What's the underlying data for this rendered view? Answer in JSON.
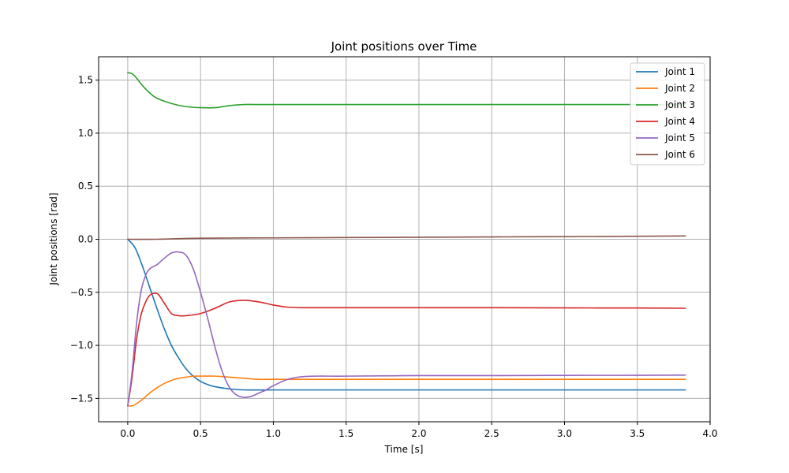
{
  "chart_data": {
    "type": "line",
    "title": "Joint positions over Time",
    "xlabel": "Time [s]",
    "ylabel": "Joint positions [rad]",
    "xlim": [
      -0.2,
      4.0
    ],
    "ylim": [
      -1.72,
      1.72
    ],
    "xticks": [
      0.0,
      0.5,
      1.0,
      1.5,
      2.0,
      2.5,
      3.0,
      3.5,
      4.0
    ],
    "xtick_labels": [
      "0.0",
      "0.5",
      "1.0",
      "1.5",
      "2.0",
      "2.5",
      "3.0",
      "3.5",
      "4.0"
    ],
    "yticks": [
      -1.5,
      -1.0,
      -0.5,
      0.0,
      0.5,
      1.0,
      1.5
    ],
    "ytick_labels": [
      "−1.5",
      "−1.0",
      "−0.5",
      "0.0",
      "0.5",
      "1.0",
      "1.5"
    ],
    "grid": true,
    "legend_position": "top-right",
    "series": [
      {
        "name": "Joint 1",
        "color": "#1f77b4",
        "x": [
          0,
          0.05,
          0.1,
          0.15,
          0.2,
          0.25,
          0.3,
          0.35,
          0.4,
          0.45,
          0.5,
          0.55,
          0.6,
          0.7,
          0.8,
          1.0,
          1.2,
          1.5,
          2.0,
          2.5,
          3.0,
          3.5,
          3.83
        ],
        "y": [
          0.0,
          -0.08,
          -0.25,
          -0.45,
          -0.65,
          -0.84,
          -1.0,
          -1.12,
          -1.22,
          -1.29,
          -1.34,
          -1.37,
          -1.39,
          -1.41,
          -1.42,
          -1.42,
          -1.42,
          -1.42,
          -1.42,
          -1.42,
          -1.42,
          -1.42,
          -1.42
        ]
      },
      {
        "name": "Joint 2",
        "color": "#ff7f0e",
        "x": [
          0,
          0.03,
          0.06,
          0.1,
          0.15,
          0.2,
          0.25,
          0.3,
          0.35,
          0.4,
          0.45,
          0.5,
          0.6,
          0.7,
          0.8,
          0.9,
          1.0,
          1.2,
          1.5,
          2.0,
          2.5,
          3.0,
          3.5,
          3.83
        ],
        "y": [
          -1.57,
          -1.57,
          -1.55,
          -1.51,
          -1.45,
          -1.4,
          -1.36,
          -1.33,
          -1.31,
          -1.3,
          -1.29,
          -1.29,
          -1.29,
          -1.3,
          -1.31,
          -1.32,
          -1.32,
          -1.32,
          -1.32,
          -1.32,
          -1.32,
          -1.32,
          -1.32,
          -1.32
        ]
      },
      {
        "name": "Joint 3",
        "color": "#2ca02c",
        "x": [
          0,
          0.03,
          0.06,
          0.1,
          0.15,
          0.2,
          0.3,
          0.4,
          0.5,
          0.6,
          0.7,
          0.8,
          0.9,
          1.0,
          1.2,
          1.5,
          2.0,
          2.5,
          3.0,
          3.5,
          3.83
        ],
        "y": [
          1.57,
          1.56,
          1.52,
          1.45,
          1.38,
          1.33,
          1.28,
          1.25,
          1.24,
          1.24,
          1.26,
          1.27,
          1.27,
          1.27,
          1.27,
          1.27,
          1.27,
          1.27,
          1.27,
          1.27,
          1.27
        ]
      },
      {
        "name": "Joint 4",
        "color": "#d62728",
        "x": [
          0,
          0.03,
          0.06,
          0.09,
          0.12,
          0.15,
          0.18,
          0.21,
          0.25,
          0.3,
          0.35,
          0.4,
          0.5,
          0.6,
          0.7,
          0.8,
          0.9,
          1.0,
          1.1,
          1.2,
          1.5,
          2.0,
          2.5,
          3.0,
          3.5,
          3.83
        ],
        "y": [
          -1.57,
          -1.3,
          -0.95,
          -0.72,
          -0.6,
          -0.53,
          -0.51,
          -0.52,
          -0.6,
          -0.7,
          -0.72,
          -0.72,
          -0.7,
          -0.65,
          -0.59,
          -0.575,
          -0.59,
          -0.62,
          -0.64,
          -0.645,
          -0.645,
          -0.645,
          -0.645,
          -0.647,
          -0.648,
          -0.65
        ]
      },
      {
        "name": "Joint 5",
        "color": "#9467bd",
        "x": [
          0,
          0.03,
          0.06,
          0.09,
          0.12,
          0.15,
          0.2,
          0.25,
          0.3,
          0.35,
          0.4,
          0.45,
          0.5,
          0.55,
          0.6,
          0.65,
          0.7,
          0.75,
          0.8,
          0.85,
          0.9,
          0.95,
          1.0,
          1.1,
          1.2,
          1.3,
          1.5,
          2.0,
          2.5,
          3.0,
          3.5,
          3.83
        ],
        "y": [
          -1.57,
          -1.25,
          -0.8,
          -0.5,
          -0.35,
          -0.28,
          -0.24,
          -0.18,
          -0.13,
          -0.12,
          -0.15,
          -0.28,
          -0.5,
          -0.75,
          -1.02,
          -1.25,
          -1.4,
          -1.47,
          -1.49,
          -1.48,
          -1.45,
          -1.42,
          -1.38,
          -1.32,
          -1.295,
          -1.29,
          -1.29,
          -1.285,
          -1.285,
          -1.283,
          -1.282,
          -1.28
        ]
      },
      {
        "name": "Joint 6",
        "color": "#8c564b",
        "x": [
          0,
          0.2,
          0.5,
          1.0,
          1.5,
          2.0,
          2.5,
          3.0,
          3.5,
          3.83
        ],
        "y": [
          0.0,
          0.0,
          0.01,
          0.013,
          0.016,
          0.019,
          0.022,
          0.025,
          0.028,
          0.031
        ]
      }
    ]
  }
}
